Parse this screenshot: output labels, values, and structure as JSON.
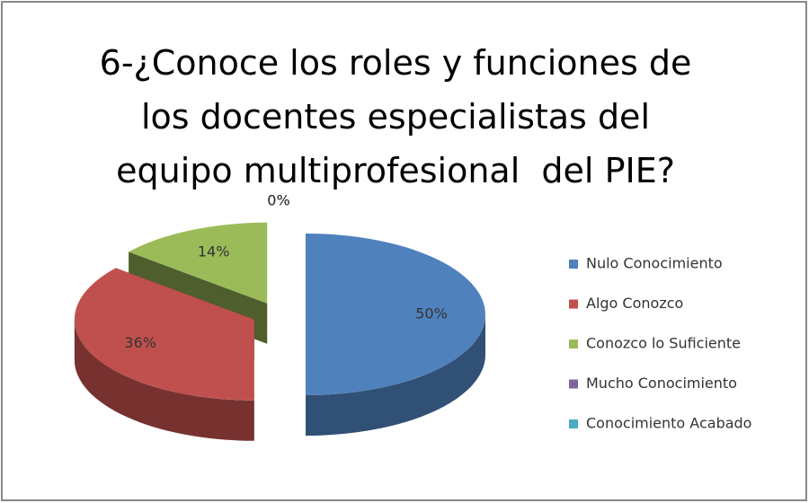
{
  "chart_data": {
    "type": "pie",
    "title": "6-¿Conoce los roles y funciones de los docentes especialistas del equipo multiprofesional  del PIE?",
    "categories": [
      "Nulo Conocimiento",
      "Algo Conozco",
      "Conozco lo Suficiente",
      "Mucho Conocimiento",
      "Conocimiento Acabado"
    ],
    "values": [
      50,
      36,
      14,
      0,
      0
    ],
    "value_labels": [
      "50%",
      "36%",
      "14%",
      "0%",
      "0%"
    ],
    "colors": [
      "#4f81bd",
      "#c0504d",
      "#9bbb59",
      "#8064a2",
      "#4bacc6"
    ],
    "legend": "right"
  }
}
